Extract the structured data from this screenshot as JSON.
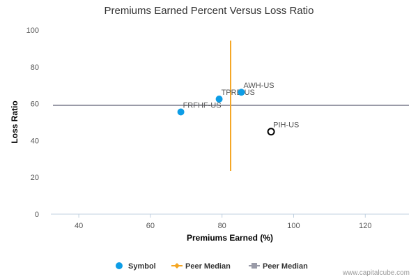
{
  "chart_data": {
    "type": "scatter",
    "title": "Premiums Earned Percent Versus Loss Ratio",
    "xlabel": "Premiums Earned (%)",
    "ylabel": "Loss Ratio",
    "xlim": [
      32.2,
      132.2
    ],
    "ylim": [
      0,
      100
    ],
    "xticks": [
      40,
      60,
      80,
      100,
      120
    ],
    "yticks": [
      0,
      20,
      40,
      60,
      80,
      100
    ],
    "grid": false,
    "legend_position": "bottom",
    "points": [
      {
        "label": "FRFHF-US",
        "x": 68.5,
        "y": 55.5,
        "style": "symbol"
      },
      {
        "label": "TPRE-US",
        "x": 79.2,
        "y": 62.5,
        "style": "symbol"
      },
      {
        "label": "AWH-US",
        "x": 85.4,
        "y": 66.2,
        "style": "symbol"
      },
      {
        "label": "PIH-US",
        "x": 93.7,
        "y": 44.8,
        "style": "highlight"
      }
    ],
    "peer_median_x": 82.4,
    "peer_median_y": 59.1,
    "peer_median_x_span": [
      23.5,
      94.2
    ],
    "legend": [
      {
        "label": "Symbol",
        "marker": "circle",
        "color": "#0d9de6"
      },
      {
        "label": "Peer Median",
        "marker": "diamond-line",
        "color": "#f5a623"
      },
      {
        "label": "Peer Median",
        "marker": "square-line",
        "color": "#9a9ba8"
      }
    ],
    "colors": {
      "symbol": "#0d9de6",
      "highlight": "#000000",
      "peer_median_vertical": "#f5a623",
      "peer_median_horizontal": "#9a9ba8",
      "axis_line": "#c0d0e0"
    }
  },
  "footer": {
    "watermark": "www.capitalcube.com"
  }
}
